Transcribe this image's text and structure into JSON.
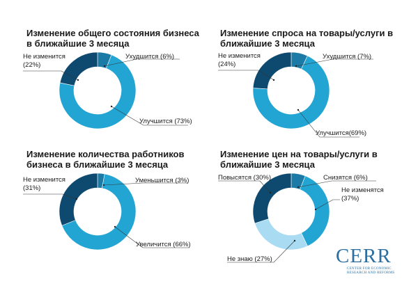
{
  "chart_data": [
    {
      "type": "pie",
      "title": "Изменение общего состояния бизнеса в ближайшие 3 месяца",
      "categories": [
        "Ухудшится",
        "Улучшится",
        "Не изменится"
      ],
      "values": [
        6,
        73,
        22
      ],
      "labels": [
        "Ухудшится (6%)",
        "Улучшится (73%)",
        "Не изменится (22%)"
      ],
      "colors": [
        "#1b7ba6",
        "#23a5d4",
        "#0e4a70"
      ]
    },
    {
      "type": "pie",
      "title": "Изменение спроса на товары/услуги в ближайшие 3 месяца",
      "categories": [
        "Ухудшится",
        "Улучшится",
        "Не изменится"
      ],
      "values": [
        7,
        69,
        24
      ],
      "labels": [
        "Ухудшится (7%)",
        "Улучшится(69%)",
        "Не изменится (24%)"
      ],
      "colors": [
        "#1b7ba6",
        "#23a5d4",
        "#0e4a70"
      ]
    },
    {
      "type": "pie",
      "title": "Изменение количества работников бизнеса в ближайшие 3 месяца",
      "categories": [
        "Уменьшится",
        "Увеличится",
        "Не изменится"
      ],
      "values": [
        3,
        66,
        31
      ],
      "labels": [
        "Уменьшится (3%)",
        "Увеличится (66%)",
        "Не изменится (31%)"
      ],
      "colors": [
        "#1b7ba6",
        "#23a5d4",
        "#0e4a70"
      ]
    },
    {
      "type": "pie",
      "title": "Изменение цен на товары/услуги в ближайшие 3 месяца",
      "categories": [
        "Снизятся",
        "Не изменятся",
        "Не знаю",
        "Повысятся"
      ],
      "values": [
        6,
        37,
        27,
        30
      ],
      "labels": [
        "Снизятся (6%)",
        "Не изменятся (37%)",
        "Не знаю (27%)",
        "Повысятся (30%)"
      ],
      "colors": [
        "#1b7ba6",
        "#23a5d4",
        "#a9dcf3",
        "#0e4a70"
      ]
    }
  ],
  "logo": {
    "word": "CERR",
    "subtitle": "CENTER FOR ECONOMIC RESEARCH AND REFORMS"
  }
}
